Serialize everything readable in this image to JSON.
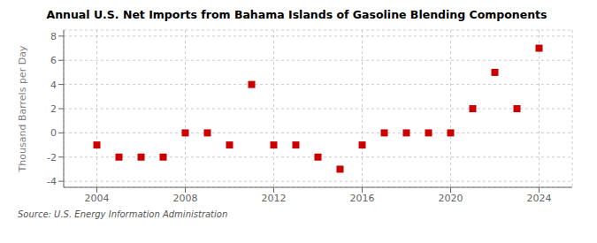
{
  "chart_data": {
    "type": "scatter",
    "title": "Annual U.S. Net Imports from Bahama Islands of Gasoline Blending Components",
    "ylabel": "Thousand Barrels per Day",
    "annotations": [
      "Source: U.S. Energy Information Administration"
    ],
    "x": [
      2004,
      2005,
      2006,
      2007,
      2008,
      2009,
      2010,
      2011,
      2012,
      2013,
      2014,
      2015,
      2016,
      2017,
      2018,
      2019,
      2020,
      2021,
      2022,
      2023,
      2024
    ],
    "values": [
      -1.0,
      -2.0,
      -2.0,
      -2.0,
      0.0,
      0.0,
      -1.0,
      4.0,
      -1.0,
      -1.0,
      -2.0,
      -3.0,
      -1.0,
      0.0,
      0.0,
      0.0,
      0.0,
      2.0,
      5.0,
      2.0,
      7.0
    ],
    "color": "#cc0000",
    "marker": "square",
    "grid": true,
    "xlim": [
      2002.5,
      2025.5
    ],
    "ylim": [
      -4.5,
      8.5
    ],
    "xticks": [
      2004,
      2008,
      2012,
      2016,
      2020,
      2024
    ],
    "yticks": [
      -4,
      -2,
      0,
      2,
      4,
      6,
      8
    ]
  }
}
